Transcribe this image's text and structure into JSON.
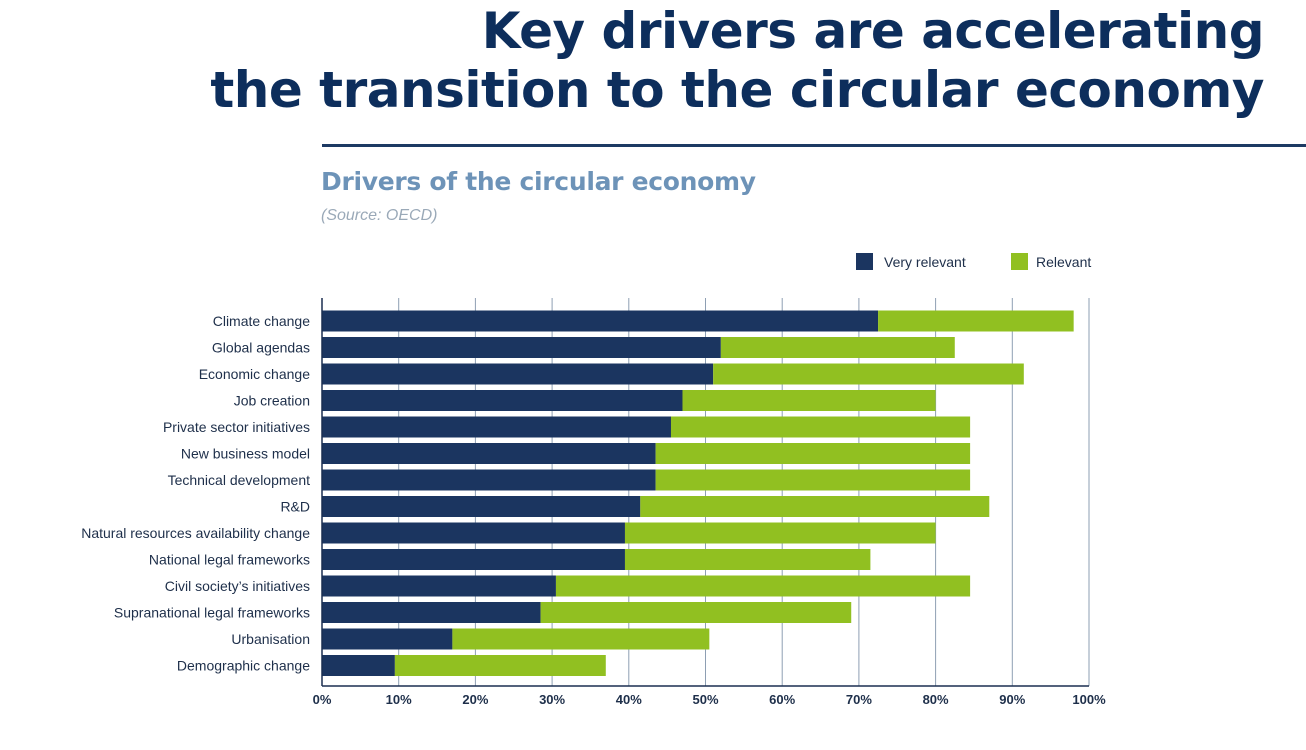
{
  "slide": {
    "title_line1": "Key drivers are accelerating",
    "title_line2": "the transition to the circular economy"
  },
  "colors": {
    "very_relevant": "#1b3560",
    "relevant": "#91c021",
    "title": "#0d2e5c",
    "chart_title": "#6d93b8",
    "gridline": "#8e9fb3"
  },
  "chart_data": {
    "type": "bar",
    "orientation": "horizontal",
    "stacked": true,
    "title": "Drivers of the circular economy",
    "subtitle": "(Source: OECD)",
    "categories": [
      "Climate change",
      "Global agendas",
      "Economic change",
      "Job creation",
      "Private sector initiatives",
      "New business model",
      "Technical development",
      "R&D",
      "Natural resources availability change",
      "National legal frameworks",
      "Civil society’s initiatives",
      "Supranational legal frameworks",
      "Urbanisation",
      "Demographic change"
    ],
    "series": [
      {
        "name": "Very relevant",
        "color": "#1b3560",
        "values": [
          72.5,
          52,
          51,
          47,
          45.5,
          43.5,
          43.5,
          41.5,
          39.5,
          39.5,
          30.5,
          28.5,
          17,
          9.5
        ]
      },
      {
        "name": "Relevant",
        "color": "#91c021",
        "values": [
          25.5,
          30.5,
          40.5,
          33,
          39,
          41,
          41,
          45.5,
          40.5,
          32,
          54,
          40.5,
          33.5,
          27.5
        ]
      }
    ],
    "xlim": [
      0,
      100
    ],
    "xticks": [
      "0%",
      "10%",
      "20%",
      "30%",
      "40%",
      "50%",
      "60%",
      "70%",
      "80%",
      "90%",
      "100%"
    ],
    "grid": true,
    "legend_position": "top-right"
  }
}
